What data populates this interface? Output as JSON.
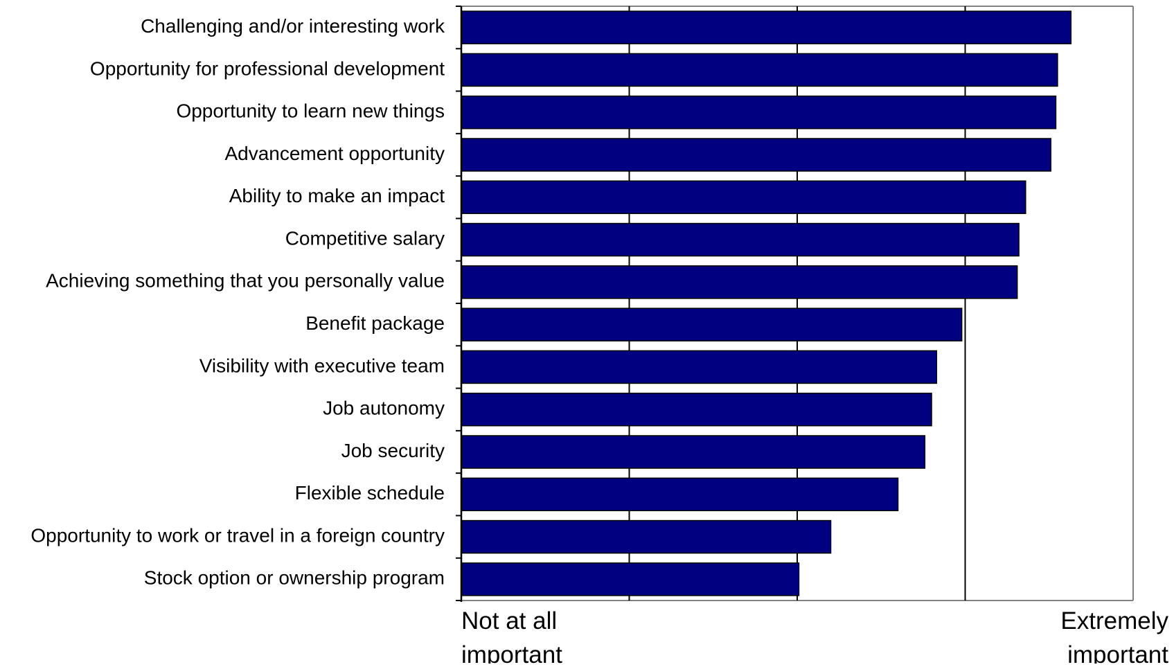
{
  "chart_data": {
    "type": "bar",
    "orientation": "horizontal",
    "categories": [
      "Challenging and/or interesting work",
      "Opportunity for professional development",
      "Opportunity to learn new things",
      "Advancement opportunity",
      "Ability to make an impact",
      "Competitive salary",
      "Achieving something that you personally value",
      "Benefit package",
      "Visibility with executive team",
      "Job autonomy",
      "Job security",
      "Flexible schedule",
      "Opportunity to work or travel in a foreign country",
      "Stock option or ownership program"
    ],
    "values": [
      4.63,
      4.55,
      4.54,
      4.51,
      4.36,
      4.32,
      4.31,
      3.98,
      3.83,
      3.8,
      3.76,
      3.6,
      3.2,
      3.01
    ],
    "xlim": [
      1,
      5
    ],
    "x_axis_end_labels": {
      "low": "Not at all important",
      "high": "Extremely important"
    },
    "grid": true,
    "bar_color": "#000080",
    "grid_color": "#000000",
    "frame_color": "#808080"
  }
}
